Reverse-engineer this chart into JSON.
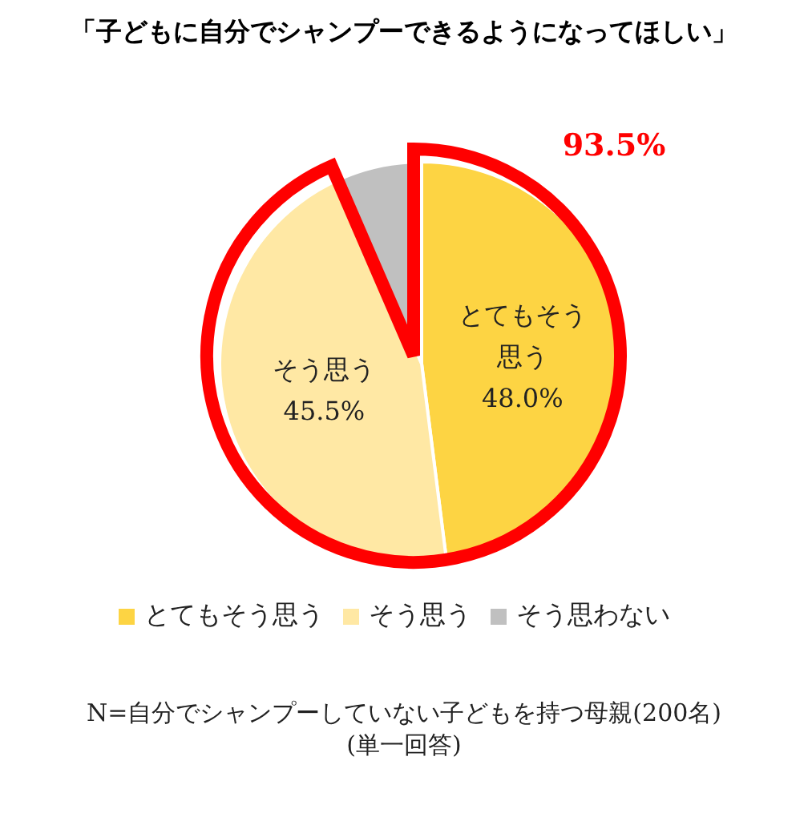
{
  "chart_data": {
    "type": "pie",
    "title": "「子どもに自分でシャンプーできるようになってほしい」",
    "categories": [
      "とてもそう思う",
      "そう思う",
      "そう思わない"
    ],
    "values": [
      48.0,
      45.5,
      6.5
    ],
    "colors": [
      "#fdd443",
      "#ffe8a4",
      "#c0c0c0"
    ],
    "value_labels": [
      "48.0%",
      "45.5%",
      null
    ],
    "legend": "bottom",
    "annotations": [
      "93.5%",
      "N=自分でシャンプーしていない子どもを持つ母親(200名)",
      "(単一回答)"
    ]
  }
}
